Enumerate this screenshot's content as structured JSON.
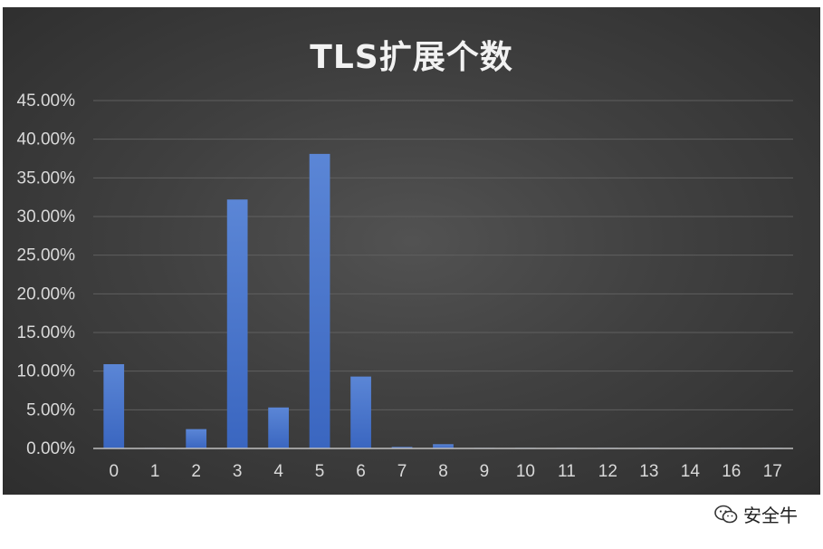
{
  "chart_data": {
    "type": "bar",
    "title": "TLS扩展个数",
    "xlabel": "",
    "ylabel": "",
    "categories": [
      "0",
      "1",
      "2",
      "3",
      "4",
      "5",
      "6",
      "7",
      "8",
      "9",
      "10",
      "11",
      "12",
      "13",
      "14",
      "16",
      "17"
    ],
    "values": [
      10.9,
      0.05,
      2.5,
      32.2,
      5.3,
      38.1,
      9.3,
      0.2,
      0.55,
      0.05,
      0.05,
      0.05,
      0.03,
      0.03,
      0.03,
      0.03,
      0.03
    ],
    "ylim": [
      0,
      45
    ],
    "yticks": [
      "0.00%",
      "5.00%",
      "10.00%",
      "15.00%",
      "20.00%",
      "25.00%",
      "30.00%",
      "35.00%",
      "40.00%",
      "45.00%"
    ],
    "grid": true,
    "colors": {
      "bar": "#4472C4",
      "background": "#404040",
      "grid": "#5f5f5f",
      "text": "#d9d9d9",
      "title": "#f2f2f2"
    }
  },
  "watermark": {
    "icon": "wechat-icon",
    "text": "安全牛"
  }
}
